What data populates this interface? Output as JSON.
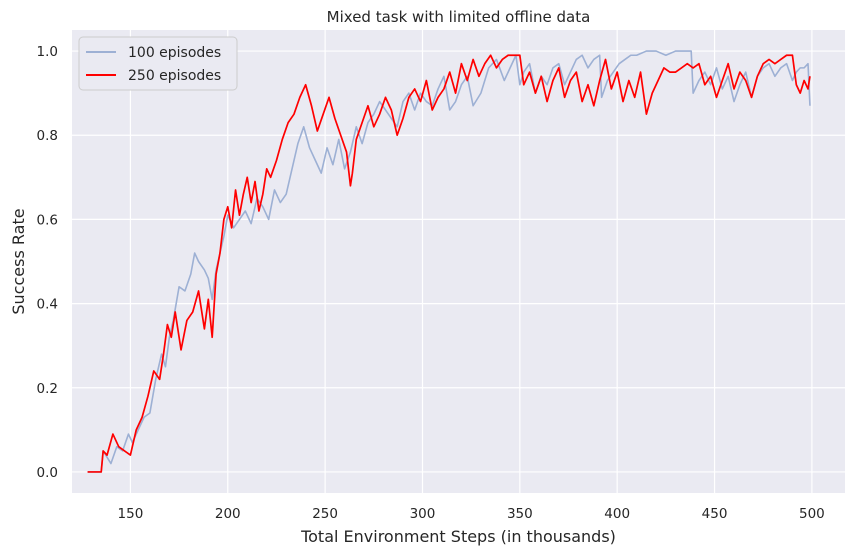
{
  "chart_data": {
    "type": "line",
    "title": "Mixed task with limited offline data",
    "xlabel": "Total Environment Steps (in thousands)",
    "ylabel": "Success Rate",
    "xlim": [
      120,
      517
    ],
    "ylim": [
      -0.05,
      1.05
    ],
    "xticks": [
      150,
      200,
      250,
      300,
      350,
      400,
      450,
      500
    ],
    "yticks": [
      0.0,
      0.2,
      0.4,
      0.6,
      0.8,
      1.0
    ],
    "ytick_labels": [
      "0.0",
      "0.2",
      "0.4",
      "0.6",
      "0.8",
      "1.0"
    ],
    "grid": true,
    "legend_position": "top-left",
    "series": [
      {
        "name": "100 episodes",
        "color": "#9db0d4",
        "x": [
          128,
          135,
          136,
          140,
          143,
          146,
          149,
          151,
          154,
          157,
          160,
          163,
          166,
          168,
          170,
          172,
          175,
          178,
          181,
          183,
          185,
          188,
          190,
          192,
          194,
          196,
          198,
          200,
          203,
          206,
          209,
          212,
          215,
          218,
          221,
          224,
          227,
          230,
          233,
          236,
          239,
          242,
          245,
          248,
          251,
          254,
          257,
          260,
          263,
          266,
          269,
          272,
          275,
          278,
          281,
          284,
          287,
          290,
          293,
          296,
          299,
          302,
          305,
          308,
          311,
          314,
          317,
          320,
          323,
          326,
          330,
          334,
          338,
          342,
          345,
          348,
          350,
          352,
          355,
          358,
          361,
          364,
          367,
          370,
          373,
          376,
          379,
          382,
          385,
          388,
          391,
          392,
          395,
          398,
          401,
          404,
          407,
          410,
          415,
          420,
          425,
          430,
          435,
          438,
          439,
          442,
          445,
          448,
          451,
          454,
          457,
          460,
          463,
          466,
          469,
          472,
          475,
          478,
          481,
          484,
          487,
          490,
          492,
          494,
          496,
          498,
          499
        ],
        "y": [
          0.0,
          0.0,
          0.05,
          0.02,
          0.06,
          0.05,
          0.09,
          0.07,
          0.1,
          0.13,
          0.14,
          0.22,
          0.28,
          0.25,
          0.32,
          0.36,
          0.44,
          0.43,
          0.47,
          0.52,
          0.5,
          0.48,
          0.46,
          0.41,
          0.48,
          0.52,
          0.56,
          0.61,
          0.58,
          0.6,
          0.62,
          0.59,
          0.65,
          0.63,
          0.6,
          0.67,
          0.64,
          0.66,
          0.72,
          0.78,
          0.82,
          0.77,
          0.74,
          0.71,
          0.77,
          0.73,
          0.79,
          0.72,
          0.76,
          0.82,
          0.78,
          0.83,
          0.85,
          0.88,
          0.86,
          0.84,
          0.82,
          0.88,
          0.9,
          0.86,
          0.9,
          0.88,
          0.87,
          0.91,
          0.94,
          0.86,
          0.88,
          0.92,
          0.94,
          0.87,
          0.9,
          0.96,
          0.98,
          0.93,
          0.96,
          0.99,
          0.92,
          0.95,
          0.97,
          0.9,
          0.94,
          0.92,
          0.96,
          0.97,
          0.92,
          0.95,
          0.98,
          0.99,
          0.96,
          0.98,
          0.99,
          0.89,
          0.93,
          0.95,
          0.97,
          0.98,
          0.99,
          0.99,
          1.0,
          1.0,
          0.99,
          1.0,
          1.0,
          1.0,
          0.9,
          0.93,
          0.95,
          0.92,
          0.96,
          0.91,
          0.94,
          0.88,
          0.92,
          0.95,
          0.89,
          0.94,
          0.96,
          0.97,
          0.94,
          0.96,
          0.97,
          0.93,
          0.95,
          0.96,
          0.96,
          0.97,
          0.87
        ]
      },
      {
        "name": "250 episodes",
        "color": "#ff0000",
        "x": [
          128,
          135,
          136,
          138,
          141,
          144,
          147,
          150,
          153,
          156,
          159,
          162,
          165,
          167,
          169,
          171,
          173,
          176,
          179,
          182,
          185,
          188,
          190,
          192,
          194,
          196,
          198,
          200,
          202,
          204,
          206,
          208,
          210,
          212,
          214,
          216,
          218,
          220,
          222,
          225,
          228,
          231,
          234,
          237,
          240,
          243,
          246,
          249,
          252,
          255,
          258,
          261,
          263,
          264,
          266,
          269,
          272,
          275,
          278,
          281,
          284,
          287,
          290,
          293,
          296,
          299,
          302,
          305,
          308,
          311,
          314,
          317,
          320,
          323,
          326,
          329,
          332,
          335,
          338,
          341,
          344,
          347,
          350,
          352,
          355,
          358,
          361,
          364,
          367,
          370,
          373,
          376,
          379,
          382,
          385,
          388,
          391,
          394,
          397,
          400,
          403,
          406,
          409,
          412,
          415,
          418,
          421,
          424,
          427,
          430,
          433,
          436,
          439,
          442,
          445,
          448,
          451,
          454,
          457,
          460,
          463,
          466,
          469,
          472,
          475,
          478,
          481,
          484,
          487,
          490,
          492,
          494,
          496,
          498,
          499
        ],
        "y": [
          0.0,
          0.0,
          0.05,
          0.04,
          0.09,
          0.06,
          0.05,
          0.04,
          0.1,
          0.13,
          0.18,
          0.24,
          0.22,
          0.28,
          0.35,
          0.32,
          0.38,
          0.29,
          0.36,
          0.38,
          0.43,
          0.34,
          0.41,
          0.32,
          0.47,
          0.52,
          0.6,
          0.63,
          0.58,
          0.67,
          0.61,
          0.66,
          0.7,
          0.64,
          0.69,
          0.62,
          0.66,
          0.72,
          0.7,
          0.74,
          0.79,
          0.83,
          0.85,
          0.89,
          0.92,
          0.87,
          0.81,
          0.85,
          0.89,
          0.84,
          0.8,
          0.76,
          0.68,
          0.71,
          0.79,
          0.83,
          0.87,
          0.82,
          0.85,
          0.89,
          0.86,
          0.8,
          0.84,
          0.89,
          0.91,
          0.88,
          0.93,
          0.86,
          0.89,
          0.91,
          0.95,
          0.9,
          0.97,
          0.93,
          0.98,
          0.94,
          0.97,
          0.99,
          0.96,
          0.98,
          0.99,
          0.99,
          0.99,
          0.92,
          0.95,
          0.9,
          0.94,
          0.88,
          0.93,
          0.96,
          0.89,
          0.93,
          0.95,
          0.88,
          0.92,
          0.87,
          0.93,
          0.98,
          0.91,
          0.95,
          0.88,
          0.93,
          0.89,
          0.95,
          0.85,
          0.9,
          0.93,
          0.96,
          0.95,
          0.95,
          0.96,
          0.97,
          0.96,
          0.97,
          0.92,
          0.94,
          0.89,
          0.93,
          0.97,
          0.91,
          0.95,
          0.93,
          0.89,
          0.94,
          0.97,
          0.98,
          0.97,
          0.98,
          0.99,
          0.99,
          0.92,
          0.9,
          0.93,
          0.91,
          0.94
        ]
      }
    ]
  }
}
